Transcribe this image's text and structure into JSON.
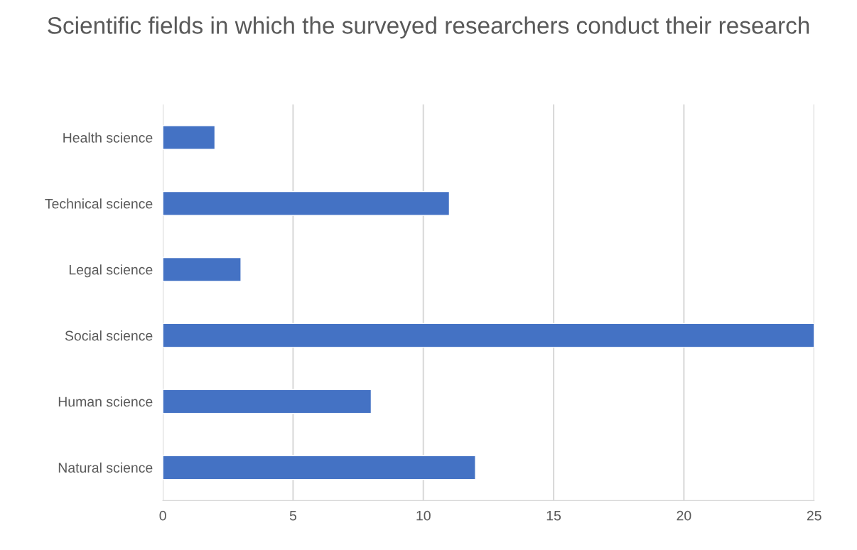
{
  "chart_data": {
    "type": "bar",
    "orientation": "horizontal",
    "title": "Scientific fields in which the surveyed researchers conduct their research",
    "categories": [
      "Health science",
      "Technical science",
      "Legal science",
      "Social science",
      "Human science",
      "Natural science"
    ],
    "values": [
      2,
      11,
      3,
      25,
      8,
      12
    ],
    "color": "#4472c4",
    "xlim": [
      0,
      25
    ],
    "xticks": [
      0,
      5,
      10,
      15,
      20,
      25
    ],
    "grid": "x"
  }
}
